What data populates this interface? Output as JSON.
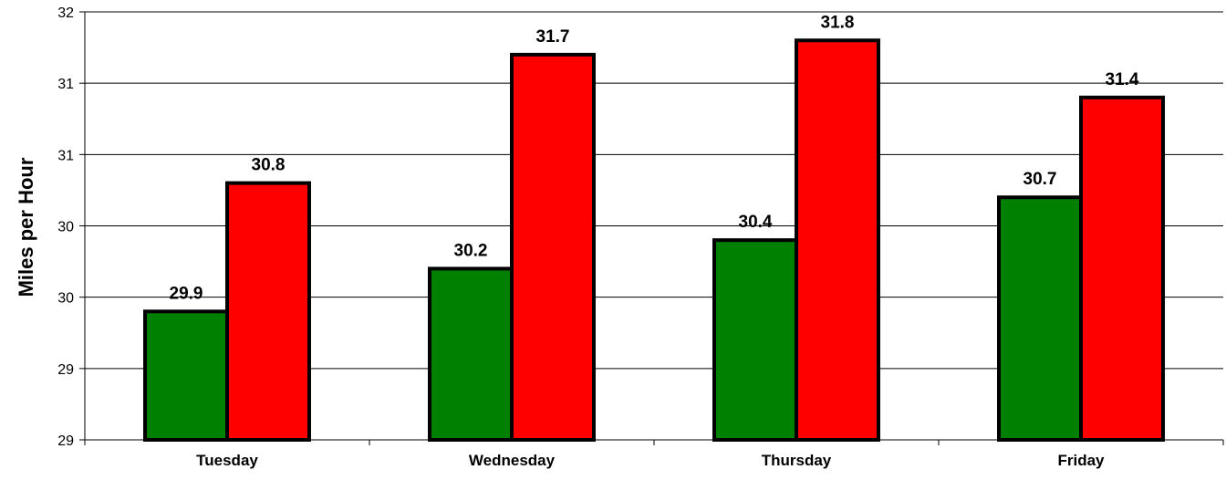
{
  "chart_data": {
    "type": "bar",
    "title": "",
    "xlabel": "",
    "ylabel": "Miles per Hour",
    "ylim": [
      29,
      32
    ],
    "y_tick_step": 0.5,
    "y_tick_labels": [
      "29",
      "29",
      "30",
      "30",
      "31",
      "31",
      "32",
      "32"
    ],
    "categories": [
      "Tuesday",
      "Wednesday",
      "Thursday",
      "Friday"
    ],
    "series": [
      {
        "color": "#008000",
        "values": [
          29.9,
          30.2,
          30.4,
          30.7
        ],
        "labels": [
          "29.9",
          "30.2",
          "30.4",
          "30.7"
        ]
      },
      {
        "color": "#ff0000",
        "values": [
          30.8,
          31.7,
          31.8,
          31.4
        ],
        "labels": [
          "30.8",
          "31.7",
          "31.8",
          "31.4"
        ]
      }
    ],
    "grid": true,
    "legend": "none"
  }
}
